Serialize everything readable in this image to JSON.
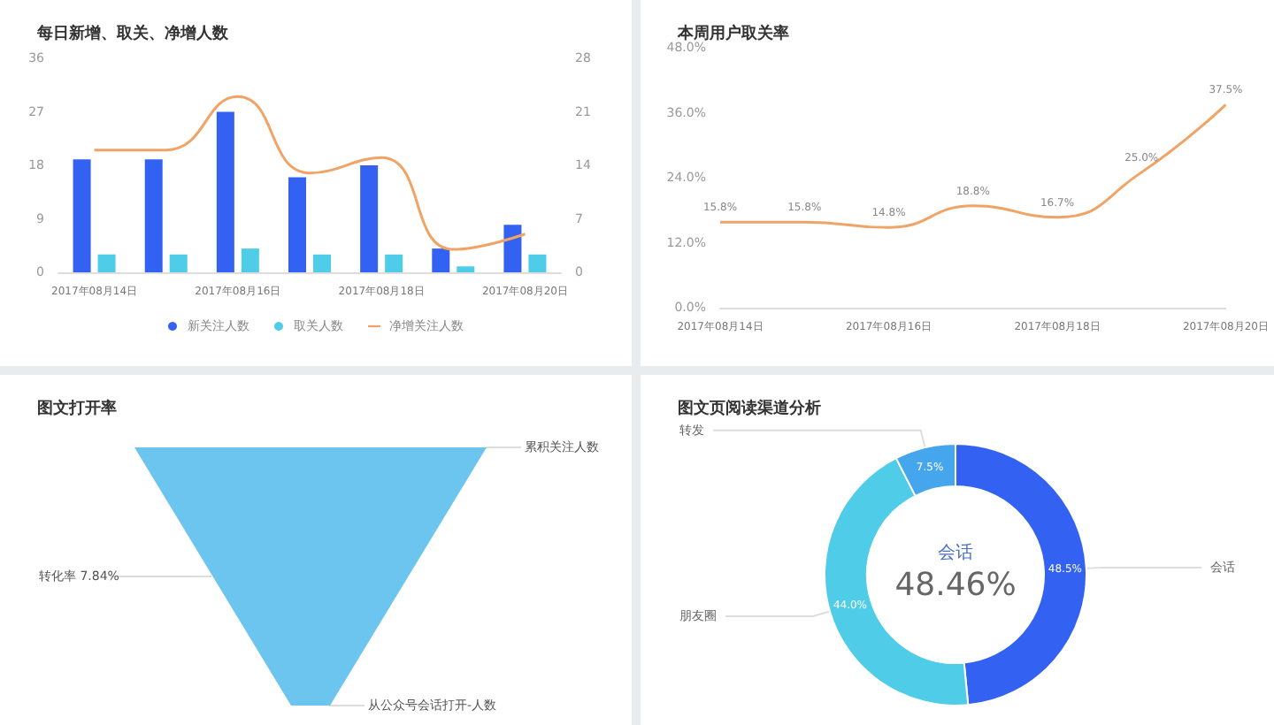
{
  "chart_data": [
    {
      "type": "bar",
      "title": "每日新增、取关、净增人数",
      "categories": [
        "2017年08月14日",
        null,
        "2017年08月16日",
        null,
        "2017年08月18日",
        null,
        "2017年08月20日"
      ],
      "series": [
        {
          "name": "新关注人数",
          "color": "#3362f2",
          "values": [
            19,
            19,
            27,
            16,
            18,
            4,
            8
          ]
        },
        {
          "name": "取关人数",
          "color": "#4fcde8",
          "values": [
            3,
            3,
            4,
            3,
            3,
            1,
            3
          ]
        },
        {
          "name": "净增关注人数",
          "type": "line",
          "axis": "y2",
          "color": "#f0a365",
          "values": [
            16,
            16,
            23,
            13,
            15,
            3,
            5
          ]
        }
      ],
      "ylim": [
        0,
        36
      ],
      "yticks": [
        0,
        9,
        18,
        27,
        36
      ],
      "y2lim": [
        0,
        28
      ],
      "y2ticks": [
        0,
        7,
        14,
        21,
        28
      ],
      "legend": "bottom",
      "marker": "none"
    },
    {
      "type": "line",
      "title": "本周用户取关率",
      "categories": [
        "2017年08月14日",
        null,
        "2017年08月16日",
        null,
        "2017年08月18日",
        null,
        "2017年08月20日"
      ],
      "series": [
        {
          "color": "#f0a365",
          "values": [
            15.8,
            15.8,
            14.8,
            18.8,
            16.7,
            25.0,
            37.5
          ],
          "value_labels": [
            "15.8%",
            "15.8%",
            "14.8%",
            "18.8%",
            "16.7%",
            "25.0%",
            "37.5%"
          ]
        }
      ],
      "ylim": [
        0,
        48
      ],
      "yticks": [
        {
          "value": 0,
          "label": "0.0%"
        },
        {
          "value": 12,
          "label": "12.0%"
        },
        {
          "value": 24,
          "label": "24.0%"
        },
        {
          "value": 36,
          "label": "36.0%"
        },
        {
          "value": 48,
          "label": "48.0%"
        }
      ],
      "marker": "none"
    },
    {
      "type": "other",
      "title": "图文打开率",
      "categories": [
        "累积关注人数",
        "从公众号会话打开-人数"
      ],
      "color": "#6bc5ee",
      "annotations": [
        "转化率 7.84%"
      ]
    },
    {
      "type": "donut",
      "title": "图文页阅读渠道分析",
      "categories": [
        "会话",
        "朋友圈",
        "转发"
      ],
      "values": [
        48.46,
        44.04,
        7.5
      ],
      "colors": [
        "#3362f2",
        "#4fcde8",
        "#45a6ee"
      ],
      "value_labels": [
        "48.5%",
        "44.0%",
        "7.5%"
      ],
      "annotations": [
        "会话",
        "48.46%"
      ]
    }
  ]
}
